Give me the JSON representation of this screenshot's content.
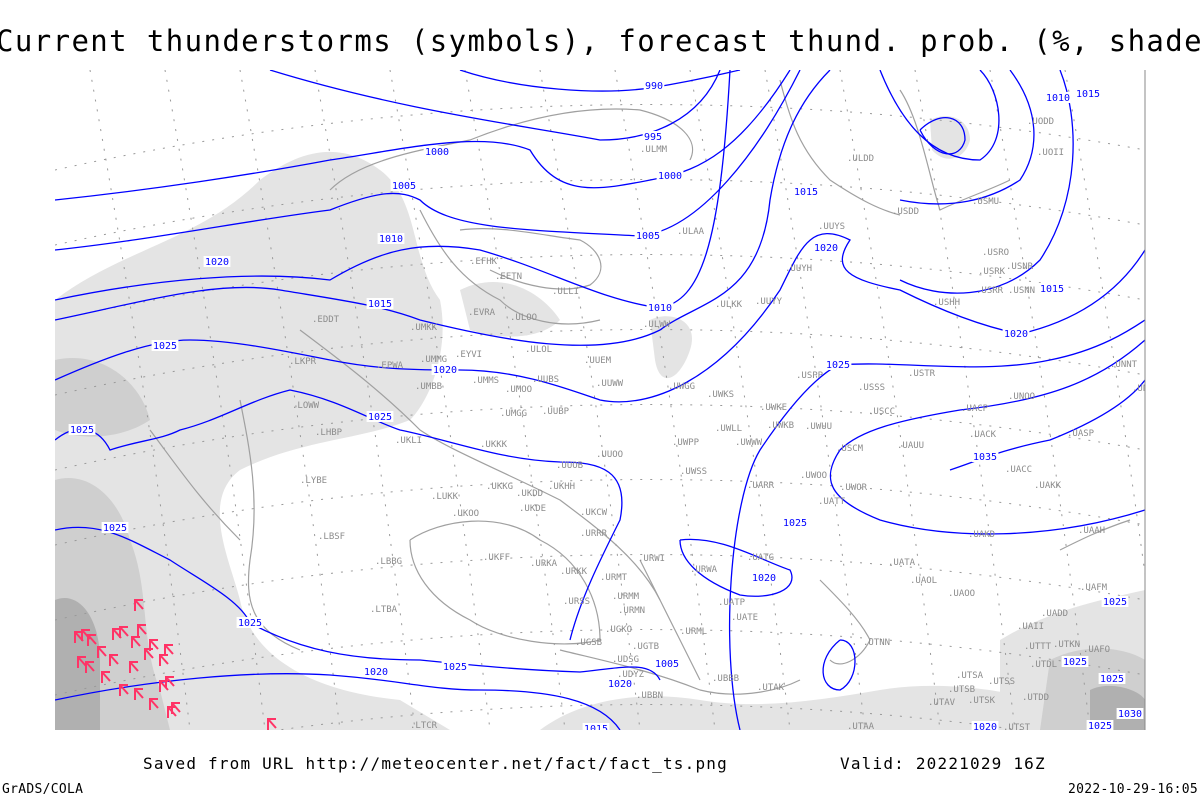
{
  "title": "Current thunderstorms (symbols), forecast thund. prob. (%, shaded)",
  "footer": {
    "saved_from": "Saved from URL http://meteocenter.net/fact/fact_ts.png",
    "valid": "Valid: 20221029 16Z",
    "software": "GrADS/COLA",
    "timestamp": "2022-10-29-16:05"
  },
  "colors": {
    "isobar": "#0000ff",
    "coastline": "#a0a0a0",
    "station_label": "#8c8c8c",
    "thunderstorm_symbol": "#ff3366",
    "shading_light": "#e4e4e4",
    "shading_mid": "#cfcfcf",
    "shading_dark": "#b0b0b0"
  },
  "icons": {
    "thunderstorm": "thunderstorm-symbol-icon"
  },
  "isobar_labels": [
    "990",
    "995",
    "1000",
    "1000",
    "1005",
    "1005",
    "1010",
    "1010",
    "1015",
    "1015",
    "1015",
    "1010",
    "1015",
    "1020",
    "1020",
    "1020",
    "1020",
    "1025",
    "1025",
    "1025",
    "1025",
    "1025",
    "1025",
    "1025",
    "1025",
    "1025",
    "1025",
    "1025",
    "1025",
    "1030",
    "1035",
    "1020",
    "1020",
    "1020",
    "1015",
    "1020",
    "1005"
  ],
  "stations": [
    "ULMM",
    "ULDD",
    "UODD",
    "UOII",
    "USMU",
    "USDD",
    "UUYS",
    "USRO",
    "USNR",
    "USRK",
    "USRR",
    "USNN",
    "USHH",
    "UUYH",
    "UUYY",
    "ULAA",
    "ULKK",
    "EFHK",
    "EETN",
    "ULLI",
    "EVRA",
    "ULOO",
    "UMKK",
    "EDDT",
    "EYVI",
    "ULOL",
    "UUEM",
    "UMMG",
    "EPWA",
    "LKPR",
    "UMMS",
    "UUBS",
    "UMOO",
    "UUWW",
    "UMBB",
    "LOWW",
    "UMGG",
    "UUBP",
    "LHBP",
    "UKLI",
    "UKKK",
    "UUOO",
    "UUOB",
    "LYBE",
    "UKHH",
    "UKKG",
    "UKDD",
    "LUKK",
    "UKDE",
    "UKOO",
    "UKCW",
    "LBSF",
    "URRR",
    "UKFF",
    "LBBG",
    "URKA",
    "URKK",
    "URMT",
    "URSS",
    "URMM",
    "URMN",
    "LTBA",
    "UGKO",
    "UGSB",
    "UGTB",
    "UDSG",
    "UDYZ",
    "UBBB",
    "UBBN",
    "URML",
    "UATE",
    "UATP",
    "URWA",
    "UATG",
    "URWI",
    "UWSS",
    "UWPP",
    "UWLL",
    "UWWW",
    "UWKE",
    "UWKB",
    "UWUU",
    "UWKS",
    "UWGG",
    "USSS",
    "USCC",
    "USPP",
    "USTR",
    "UNOO",
    "UACP",
    "UACK",
    "UASP",
    "UNNT",
    "UNBB",
    "USCM",
    "UAUU",
    "UWOO",
    "UWOR",
    "UATT",
    "UARR",
    "UACC",
    "UAKK",
    "UAKD",
    "UAAH",
    "UATA",
    "UAOL",
    "UAOO",
    "UADD",
    "UAII",
    "UTTT",
    "UTKN",
    "UAFO",
    "UTDL",
    "UTSA",
    "UTSS",
    "UTSB",
    "UTAV",
    "UTSK",
    "UTDD",
    "UTNN",
    "UTAK",
    "UTAA",
    "UTST",
    "UAFM",
    "ULWW",
    "LTCR"
  ]
}
